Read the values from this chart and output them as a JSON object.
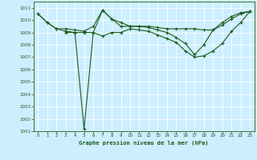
{
  "title": "Graphe pression niveau de la mer (hPa)",
  "background_color": "#cceeff",
  "line_color": "#1a5c1a",
  "grid_color": "#ffffff",
  "xlim": [
    -0.5,
    23.5
  ],
  "ylim": [
    1001,
    1011.5
  ],
  "xticks": [
    0,
    1,
    2,
    3,
    4,
    5,
    6,
    7,
    8,
    9,
    10,
    11,
    12,
    13,
    14,
    15,
    16,
    17,
    18,
    19,
    20,
    21,
    22,
    23
  ],
  "yticks": [
    1001,
    1002,
    1003,
    1004,
    1005,
    1006,
    1007,
    1008,
    1009,
    1010,
    1011
  ],
  "series": [
    {
      "x": [
        0,
        1,
        2,
        3,
        4,
        5,
        6,
        7,
        8,
        9,
        10,
        11,
        12,
        13,
        14,
        15,
        16,
        17,
        18,
        19,
        20,
        21,
        22,
        23
      ],
      "y": [
        1010.5,
        1009.8,
        1009.3,
        1009.1,
        1009.0,
        1001.2,
        1009.0,
        1010.8,
        1010.1,
        1009.5,
        1009.5,
        1009.5,
        1009.4,
        1009.2,
        1009.0,
        1008.6,
        1008.1,
        1007.2,
        1008.0,
        1009.2,
        1009.8,
        1010.3,
        1010.6,
        1010.7
      ]
    },
    {
      "x": [
        0,
        1,
        2,
        3,
        4,
        5,
        6,
        7,
        8,
        9,
        10,
        11,
        12,
        13,
        14,
        15,
        16,
        17,
        18,
        19,
        20,
        21,
        22,
        23
      ],
      "y": [
        1010.5,
        1009.8,
        1009.3,
        1009.3,
        1009.2,
        1009.1,
        1009.5,
        1010.8,
        1010.1,
        1009.8,
        1009.5,
        1009.5,
        1009.5,
        1009.4,
        1009.3,
        1009.3,
        1009.3,
        1009.3,
        1009.2,
        1009.2,
        1009.6,
        1010.1,
        1010.5,
        1010.7
      ]
    },
    {
      "x": [
        3,
        4,
        5,
        6,
        7,
        8,
        9,
        10,
        11,
        12,
        13,
        14,
        15,
        16,
        17,
        18,
        19,
        20,
        21,
        22,
        23
      ],
      "y": [
        1009.0,
        1009.0,
        1009.0,
        1009.0,
        1008.7,
        1009.0,
        1009.0,
        1009.3,
        1009.2,
        1009.1,
        1008.8,
        1008.5,
        1008.2,
        1007.5,
        1007.0,
        1007.1,
        1007.5,
        1008.1,
        1009.1,
        1009.8,
        1010.7
      ]
    }
  ]
}
